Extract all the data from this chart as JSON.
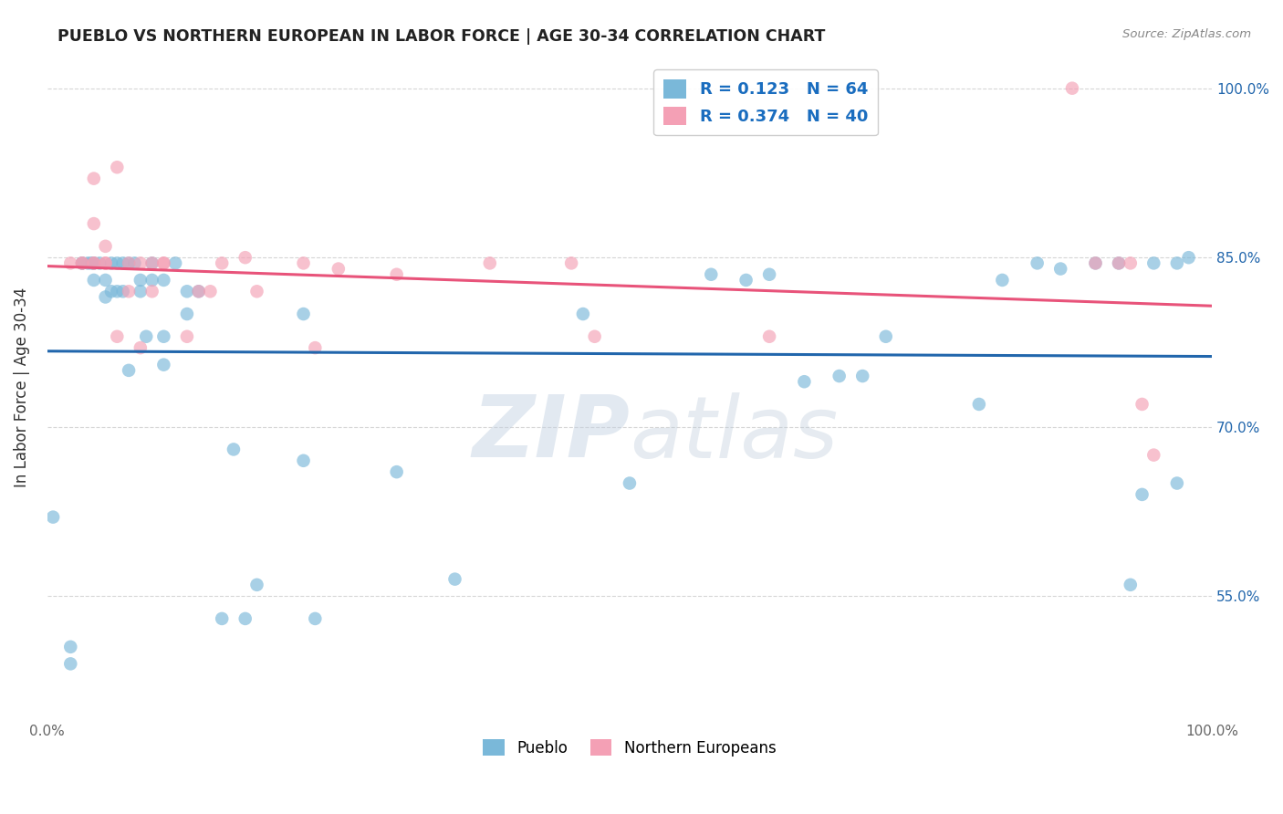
{
  "title": "PUEBLO VS NORTHERN EUROPEAN IN LABOR FORCE | AGE 30-34 CORRELATION CHART",
  "source": "Source: ZipAtlas.com",
  "ylabel": "In Labor Force | Age 30-34",
  "xlim": [
    0,
    1
  ],
  "ylim": [
    0.44,
    1.03
  ],
  "y_ticks": [
    0.55,
    0.7,
    0.85,
    1.0
  ],
  "y_tick_labels": [
    "55.0%",
    "70.0%",
    "85.0%",
    "100.0%"
  ],
  "pueblo_color": "#7ab8d9",
  "northern_color": "#f4a0b5",
  "pueblo_line_color": "#2166ac",
  "northern_line_color": "#e8537a",
  "legend_label_1": "R = 0.123   N = 64",
  "legend_label_2": "R = 0.374   N = 40",
  "pueblo_scatter_x": [
    0.005,
    0.02,
    0.02,
    0.03,
    0.03,
    0.035,
    0.038,
    0.04,
    0.04,
    0.04,
    0.045,
    0.05,
    0.05,
    0.055,
    0.055,
    0.06,
    0.06,
    0.065,
    0.065,
    0.07,
    0.07,
    0.075,
    0.08,
    0.08,
    0.085,
    0.09,
    0.09,
    0.1,
    0.1,
    0.1,
    0.11,
    0.12,
    0.12,
    0.13,
    0.15,
    0.16,
    0.17,
    0.18,
    0.22,
    0.22,
    0.23,
    0.3,
    0.35,
    0.46,
    0.5,
    0.57,
    0.6,
    0.62,
    0.65,
    0.68,
    0.7,
    0.72,
    0.8,
    0.82,
    0.85,
    0.87,
    0.9,
    0.92,
    0.93,
    0.94,
    0.95,
    0.97,
    0.97,
    0.98
  ],
  "pueblo_scatter_y": [
    0.62,
    0.49,
    0.505,
    0.845,
    0.845,
    0.845,
    0.845,
    0.845,
    0.83,
    0.845,
    0.845,
    0.815,
    0.83,
    0.82,
    0.845,
    0.82,
    0.845,
    0.82,
    0.845,
    0.845,
    0.75,
    0.845,
    0.83,
    0.82,
    0.78,
    0.845,
    0.83,
    0.83,
    0.755,
    0.78,
    0.845,
    0.82,
    0.8,
    0.82,
    0.53,
    0.68,
    0.53,
    0.56,
    0.8,
    0.67,
    0.53,
    0.66,
    0.565,
    0.8,
    0.65,
    0.835,
    0.83,
    0.835,
    0.74,
    0.745,
    0.745,
    0.78,
    0.72,
    0.83,
    0.845,
    0.84,
    0.845,
    0.845,
    0.56,
    0.64,
    0.845,
    0.65,
    0.845,
    0.85
  ],
  "northern_scatter_x": [
    0.02,
    0.03,
    0.03,
    0.04,
    0.04,
    0.04,
    0.04,
    0.05,
    0.05,
    0.05,
    0.06,
    0.06,
    0.07,
    0.07,
    0.08,
    0.08,
    0.09,
    0.09,
    0.1,
    0.1,
    0.12,
    0.13,
    0.14,
    0.15,
    0.17,
    0.18,
    0.22,
    0.23,
    0.25,
    0.3,
    0.38,
    0.45,
    0.47,
    0.62,
    0.88,
    0.9,
    0.92,
    0.93,
    0.94,
    0.95
  ],
  "northern_scatter_y": [
    0.845,
    0.845,
    0.845,
    0.845,
    0.845,
    0.92,
    0.88,
    0.845,
    0.86,
    0.845,
    0.78,
    0.93,
    0.82,
    0.845,
    0.845,
    0.77,
    0.845,
    0.82,
    0.845,
    0.845,
    0.78,
    0.82,
    0.82,
    0.845,
    0.85,
    0.82,
    0.845,
    0.77,
    0.84,
    0.835,
    0.845,
    0.845,
    0.78,
    0.78,
    1.0,
    0.845,
    0.845,
    0.845,
    0.72,
    0.675
  ],
  "watermark_zip": "ZIP",
  "watermark_atlas": "atlas",
  "background_color": "#ffffff",
  "grid_color": "#cccccc"
}
